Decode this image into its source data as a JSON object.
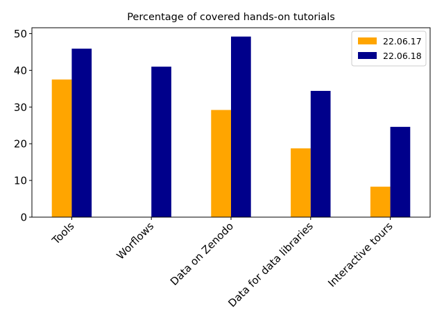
{
  "chart_data": {
    "type": "bar",
    "title": "Percentage of covered hands-on tutorials",
    "xlabel": "",
    "ylabel": "",
    "categories": [
      "Tools",
      "Worflows",
      "Data on Zenodo",
      "Data for data libraries",
      "Interactive tours"
    ],
    "series": [
      {
        "name": "22.06.17",
        "color": "#ffa500",
        "values": [
          37.5,
          0,
          29.2,
          18.75,
          8.3
        ]
      },
      {
        "name": "22.06.18",
        "color": "#00008b",
        "values": [
          45.9,
          41.0,
          49.2,
          34.4,
          24.6
        ]
      }
    ],
    "ylim": [
      0,
      51.6
    ],
    "yticks": [
      0,
      10,
      20,
      30,
      40,
      50
    ],
    "legend": "upper right",
    "grid": false
  }
}
